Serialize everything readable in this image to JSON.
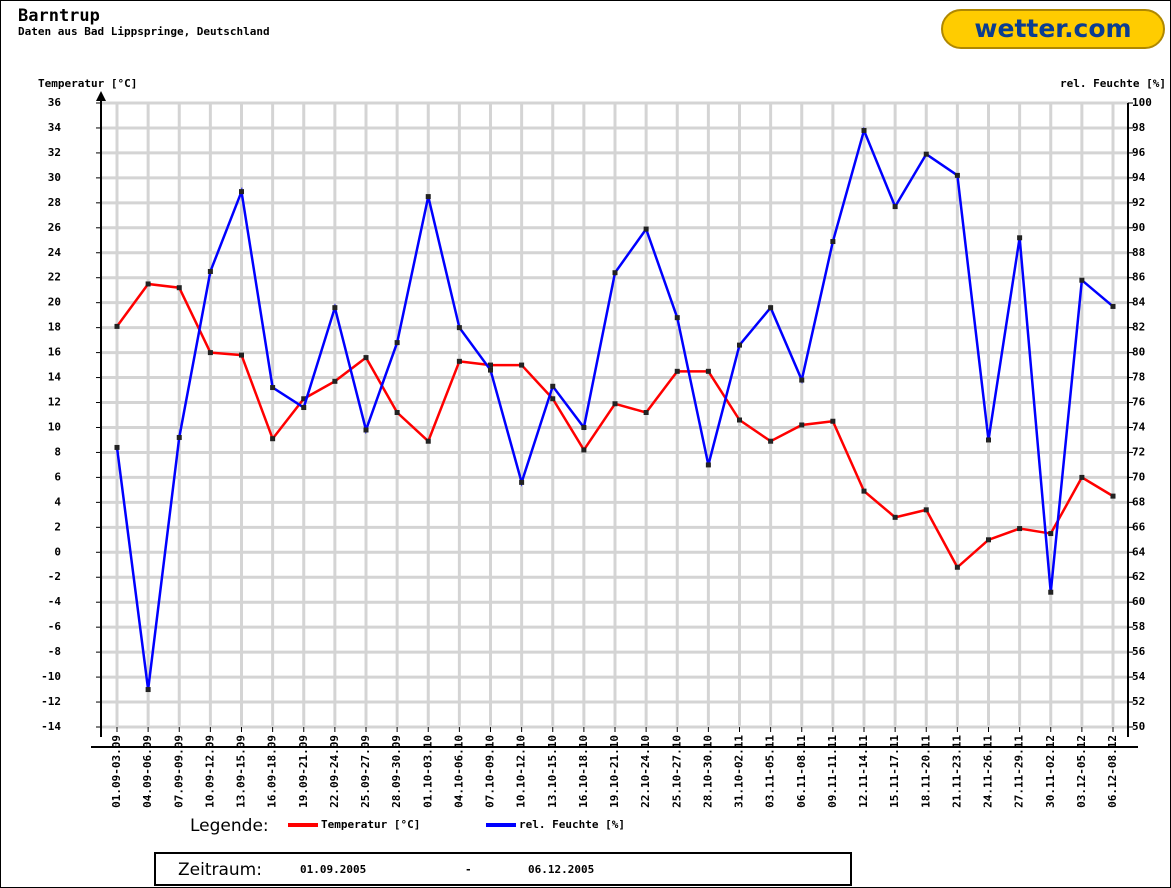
{
  "chart_data": {
    "type": "line",
    "title": "Barntrup",
    "subtitle": "Daten aus Bad Lippspringe, Deutschland",
    "logo": "wetter.com",
    "y_label": "Temperatur [°C]",
    "y2_label": "rel. Feuchte [%]",
    "legend_title": "Legende:",
    "period": {
      "label": "Zeitraum:",
      "from": "01.09.2005",
      "separator": "-",
      "to": "06.12.2005"
    },
    "categories": [
      "01.09-03.09",
      "04.09-06.09",
      "07.09-09.09",
      "10.09-12.09",
      "13.09-15.09",
      "16.09-18.09",
      "19.09-21.09",
      "22.09-24.09",
      "25.09-27.09",
      "28.09-30.09",
      "01.10-03.10",
      "04.10-06.10",
      "07.10-09.10",
      "10.10-12.10",
      "13.10-15.10",
      "16.10-18.10",
      "19.10-21.10",
      "22.10-24.10",
      "25.10-27.10",
      "28.10-30.10",
      "31.10-02.11",
      "03.11-05.11",
      "06.11-08.11",
      "09.11-11.11",
      "12.11-14.11",
      "15.11-17.11",
      "18.11-20.11",
      "21.11-23.11",
      "24.11-26.11",
      "27.11-29.11",
      "30.11-02.12",
      "03.12-05.12",
      "06.12-08.12"
    ],
    "series": [
      {
        "name": "Temperatur [°C]",
        "color": "#ff0000",
        "values": [
          18.1,
          21.5,
          21.2,
          16.0,
          15.8,
          9.1,
          12.3,
          13.7,
          15.6,
          11.2,
          8.9,
          15.3,
          15.0,
          15.0,
          12.3,
          8.2,
          11.9,
          11.2,
          14.5,
          14.5,
          10.6,
          8.9,
          10.2,
          10.5,
          4.9,
          2.8,
          3.4,
          -1.2,
          1.0,
          1.9,
          1.5,
          6.0,
          4.5
        ]
      },
      {
        "name": "rel. Feuchte [%]",
        "color": "#0000ff",
        "axis": "y2",
        "values": [
          72.4,
          53.0,
          73.2,
          86.5,
          92.9,
          77.2,
          75.6,
          83.6,
          73.8,
          80.8,
          92.5,
          82.0,
          78.6,
          69.6,
          77.3,
          74.0,
          86.4,
          89.9,
          82.8,
          71.0,
          80.6,
          83.6,
          77.8,
          88.9,
          97.8,
          91.7,
          95.9,
          94.2,
          73.0,
          89.2,
          60.8,
          85.8,
          83.7
        ]
      }
    ],
    "ylim": [
      -14,
      36
    ],
    "yticks": [
      -14,
      -12,
      -10,
      -8,
      -6,
      -4,
      -2,
      0,
      2,
      4,
      6,
      8,
      10,
      12,
      14,
      16,
      18,
      20,
      22,
      24,
      26,
      28,
      30,
      32,
      34,
      36
    ],
    "y2lim": [
      50,
      100
    ],
    "y2ticks": [
      50,
      52,
      54,
      56,
      58,
      60,
      62,
      64,
      66,
      68,
      70,
      72,
      74,
      76,
      78,
      80,
      82,
      84,
      86,
      88,
      90,
      92,
      94,
      96,
      98,
      100
    ],
    "grid": true
  }
}
